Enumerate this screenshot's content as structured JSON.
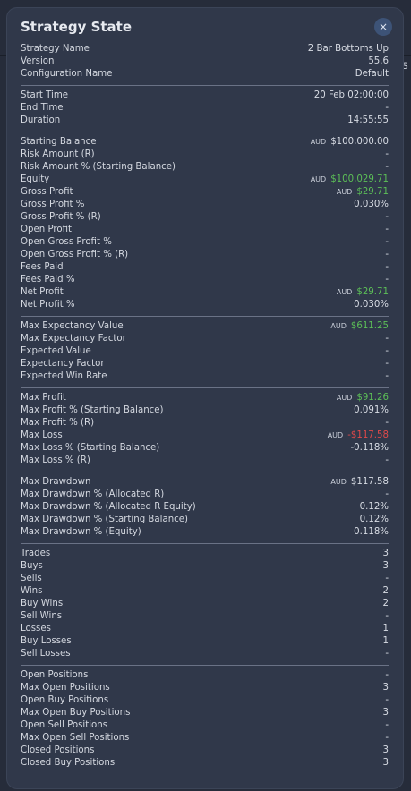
{
  "title": "Strategy State",
  "close_label": "×",
  "backdrop_char": "s",
  "colors": {
    "green": "#5cbf57",
    "red": "#e04949"
  },
  "sections": [
    [
      {
        "label": "Strategy Name",
        "value": "2 Bar Bottoms Up"
      },
      {
        "label": "Version",
        "value": "55.6"
      },
      {
        "label": "Configuration Name",
        "value": "Default"
      }
    ],
    [
      {
        "label": "Start Time",
        "value": "20 Feb 02:00:00"
      },
      {
        "label": "End Time",
        "value": "-"
      },
      {
        "label": "Duration",
        "value": "14:55:55"
      }
    ],
    [
      {
        "label": "Starting Balance",
        "currency": "AUD",
        "value": "$100,000.00"
      },
      {
        "label": "Risk Amount (R)",
        "value": "-"
      },
      {
        "label": "Risk Amount % (Starting Balance)",
        "value": "-"
      },
      {
        "label": "Equity",
        "currency": "AUD",
        "value": "$100,029.71",
        "color": "green"
      },
      {
        "label": "Gross Profit",
        "currency": "AUD",
        "value": "$29.71",
        "color": "green"
      },
      {
        "label": "Gross Profit %",
        "value": "0.030%"
      },
      {
        "label": "Gross Profit % (R)",
        "value": "-"
      },
      {
        "label": "Open Profit",
        "value": "-"
      },
      {
        "label": "Open Gross Profit %",
        "value": "-"
      },
      {
        "label": "Open Gross Profit % (R)",
        "value": "-"
      },
      {
        "label": "Fees Paid",
        "value": "-"
      },
      {
        "label": "Fees Paid %",
        "value": "-"
      },
      {
        "label": "Net Profit",
        "currency": "AUD",
        "value": "$29.71",
        "color": "green"
      },
      {
        "label": "Net Profit %",
        "value": "0.030%"
      }
    ],
    [
      {
        "label": "Max Expectancy Value",
        "currency": "AUD",
        "value": "$611.25",
        "color": "green"
      },
      {
        "label": "Max Expectancy Factor",
        "value": "-"
      },
      {
        "label": "Expected Value",
        "value": "-"
      },
      {
        "label": "Expectancy Factor",
        "value": "-"
      },
      {
        "label": "Expected Win Rate",
        "value": "-"
      }
    ],
    [
      {
        "label": "Max Profit",
        "currency": "AUD",
        "value": "$91.26",
        "color": "green"
      },
      {
        "label": "Max Profit % (Starting Balance)",
        "value": "0.091%"
      },
      {
        "label": "Max Profit % (R)",
        "value": "-"
      },
      {
        "label": "Max Loss",
        "currency": "AUD",
        "value": "-$117.58",
        "color": "red"
      },
      {
        "label": "Max Loss % (Starting Balance)",
        "value": "-0.118%"
      },
      {
        "label": "Max Loss % (R)",
        "value": "-"
      }
    ],
    [
      {
        "label": "Max Drawdown",
        "currency": "AUD",
        "value": "$117.58"
      },
      {
        "label": "Max Drawdown % (Allocated R)",
        "value": "-"
      },
      {
        "label": "Max Drawdown % (Allocated R Equity)",
        "value": "0.12%"
      },
      {
        "label": "Max Drawdown % (Starting Balance)",
        "value": "0.12%"
      },
      {
        "label": "Max Drawdown % (Equity)",
        "value": "0.118%"
      }
    ],
    [
      {
        "label": "Trades",
        "value": "3"
      },
      {
        "label": "Buys",
        "value": "3"
      },
      {
        "label": "Sells",
        "value": "-"
      },
      {
        "label": "Wins",
        "value": "2"
      },
      {
        "label": "Buy Wins",
        "value": "2"
      },
      {
        "label": "Sell Wins",
        "value": "-"
      },
      {
        "label": "Losses",
        "value": "1"
      },
      {
        "label": "Buy Losses",
        "value": "1"
      },
      {
        "label": "Sell Losses",
        "value": "-"
      }
    ],
    [
      {
        "label": "Open Positions",
        "value": "-"
      },
      {
        "label": "Max Open Positions",
        "value": "3"
      },
      {
        "label": "Open Buy Positions",
        "value": "-"
      },
      {
        "label": "Max Open Buy Positions",
        "value": "3"
      },
      {
        "label": "Open Sell Positions",
        "value": "-"
      },
      {
        "label": "Max Open Sell Positions",
        "value": "-"
      },
      {
        "label": "Closed Positions",
        "value": "3"
      },
      {
        "label": "Closed Buy Positions",
        "value": "3"
      }
    ]
  ]
}
